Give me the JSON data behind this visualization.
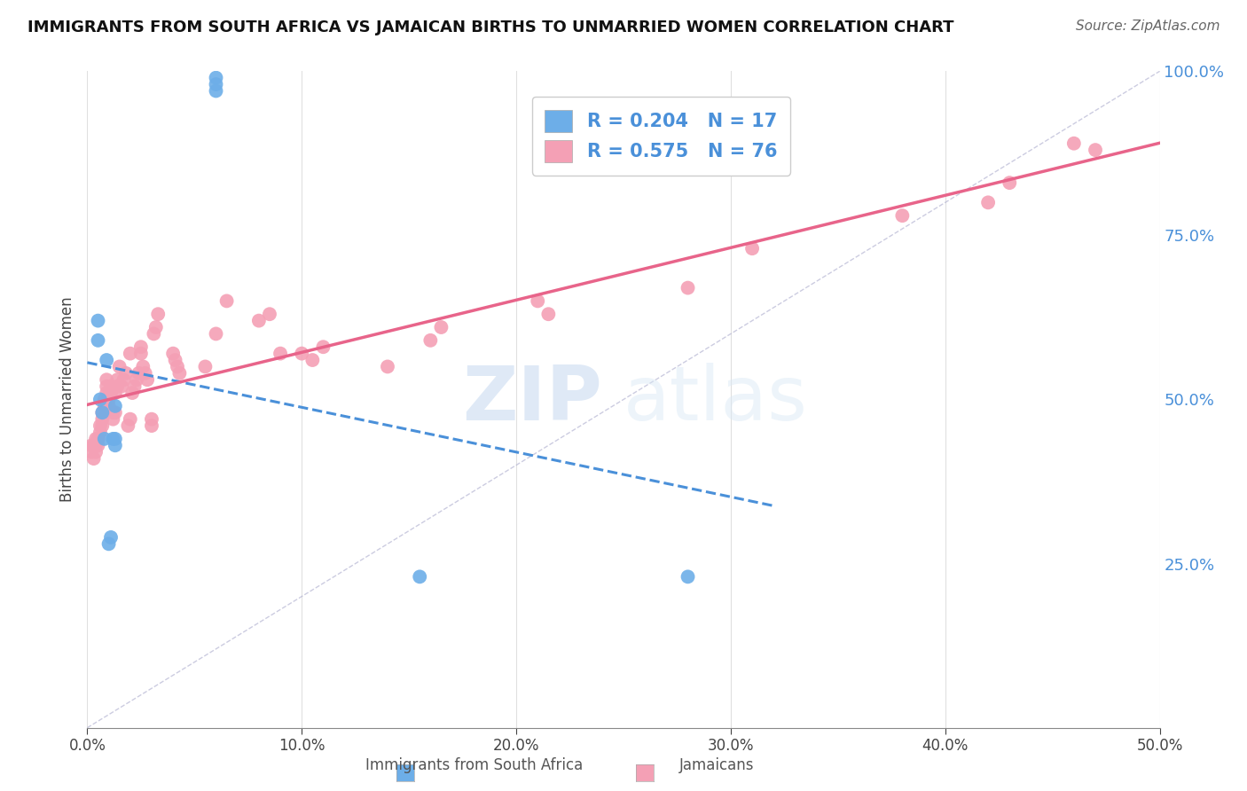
{
  "title": "IMMIGRANTS FROM SOUTH AFRICA VS JAMAICAN BIRTHS TO UNMARRIED WOMEN CORRELATION CHART",
  "source": "Source: ZipAtlas.com",
  "ylabel": "Births to Unmarried Women",
  "legend_label1": "Immigrants from South Africa",
  "legend_label2": "Jamaicans",
  "R1": 0.204,
  "N1": 17,
  "R2": 0.575,
  "N2": 76,
  "color_blue": "#6daee8",
  "color_pink": "#f4a0b5",
  "color_blue_dark": "#4a90d9",
  "color_pink_dark": "#e8648a",
  "xlim": [
    0.0,
    0.5
  ],
  "ylim": [
    0.0,
    1.0
  ],
  "ylabel_right_positions": [
    1.0,
    0.75,
    0.5,
    0.25
  ],
  "blue_scatter_x": [
    0.005,
    0.005,
    0.006,
    0.007,
    0.008,
    0.009,
    0.01,
    0.011,
    0.012,
    0.013,
    0.013,
    0.013,
    0.06,
    0.06,
    0.06,
    0.155,
    0.28
  ],
  "blue_scatter_y": [
    0.62,
    0.59,
    0.5,
    0.48,
    0.44,
    0.56,
    0.28,
    0.29,
    0.44,
    0.49,
    0.43,
    0.44,
    0.99,
    0.98,
    0.97,
    0.23,
    0.23
  ],
  "pink_scatter_x": [
    0.002,
    0.002,
    0.003,
    0.003,
    0.004,
    0.004,
    0.004,
    0.005,
    0.005,
    0.005,
    0.006,
    0.006,
    0.007,
    0.007,
    0.007,
    0.008,
    0.008,
    0.009,
    0.009,
    0.009,
    0.01,
    0.01,
    0.011,
    0.011,
    0.012,
    0.012,
    0.013,
    0.013,
    0.014,
    0.014,
    0.015,
    0.016,
    0.017,
    0.018,
    0.019,
    0.02,
    0.02,
    0.021,
    0.022,
    0.023,
    0.024,
    0.025,
    0.025,
    0.026,
    0.027,
    0.028,
    0.03,
    0.03,
    0.031,
    0.032,
    0.033,
    0.04,
    0.041,
    0.042,
    0.043,
    0.055,
    0.06,
    0.065,
    0.08,
    0.085,
    0.09,
    0.1,
    0.105,
    0.11,
    0.14,
    0.16,
    0.165,
    0.21,
    0.215,
    0.28,
    0.31,
    0.38,
    0.42,
    0.43,
    0.46,
    0.47
  ],
  "pink_scatter_y": [
    0.43,
    0.42,
    0.43,
    0.41,
    0.43,
    0.44,
    0.42,
    0.44,
    0.44,
    0.43,
    0.45,
    0.46,
    0.46,
    0.47,
    0.48,
    0.49,
    0.5,
    0.51,
    0.52,
    0.53,
    0.5,
    0.49,
    0.52,
    0.51,
    0.48,
    0.47,
    0.51,
    0.48,
    0.52,
    0.53,
    0.55,
    0.52,
    0.53,
    0.54,
    0.46,
    0.47,
    0.57,
    0.51,
    0.52,
    0.53,
    0.54,
    0.57,
    0.58,
    0.55,
    0.54,
    0.53,
    0.46,
    0.47,
    0.6,
    0.61,
    0.63,
    0.57,
    0.56,
    0.55,
    0.54,
    0.55,
    0.6,
    0.65,
    0.62,
    0.63,
    0.57,
    0.57,
    0.56,
    0.58,
    0.55,
    0.59,
    0.61,
    0.65,
    0.63,
    0.67,
    0.73,
    0.78,
    0.8,
    0.83,
    0.89,
    0.88
  ],
  "watermark_zip": "ZIP",
  "watermark_atlas": "atlas",
  "grid_color": "#e0e0e0"
}
